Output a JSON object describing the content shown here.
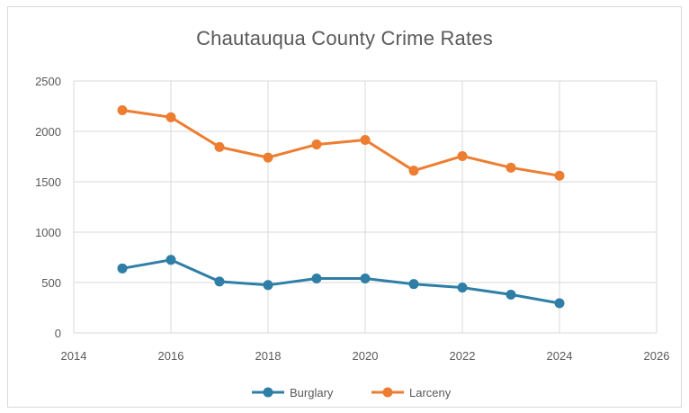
{
  "chart_data": {
    "type": "line",
    "title": "Chautauqua County Crime Rates",
    "xlabel": "",
    "ylabel": "",
    "xlim": [
      2014,
      2026
    ],
    "ylim": [
      0,
      2500
    ],
    "x_ticks": [
      2014,
      2016,
      2018,
      2020,
      2022,
      2024,
      2026
    ],
    "y_ticks": [
      0,
      500,
      1000,
      1500,
      2000,
      2500
    ],
    "grid": true,
    "legend_position": "bottom",
    "series": [
      {
        "name": "Burglary",
        "color": "#2e7ea6",
        "x": [
          2015,
          2016,
          2017,
          2018,
          2019,
          2020,
          2021,
          2022,
          2023,
          2024
        ],
        "values": [
          640,
          725,
          510,
          475,
          540,
          540,
          485,
          450,
          380,
          295
        ]
      },
      {
        "name": "Larceny",
        "color": "#ed7d31",
        "x": [
          2015,
          2016,
          2017,
          2018,
          2019,
          2020,
          2021,
          2022,
          2023,
          2024
        ],
        "values": [
          2210,
          2140,
          1845,
          1740,
          1870,
          1915,
          1610,
          1755,
          1640,
          1560
        ]
      }
    ]
  }
}
